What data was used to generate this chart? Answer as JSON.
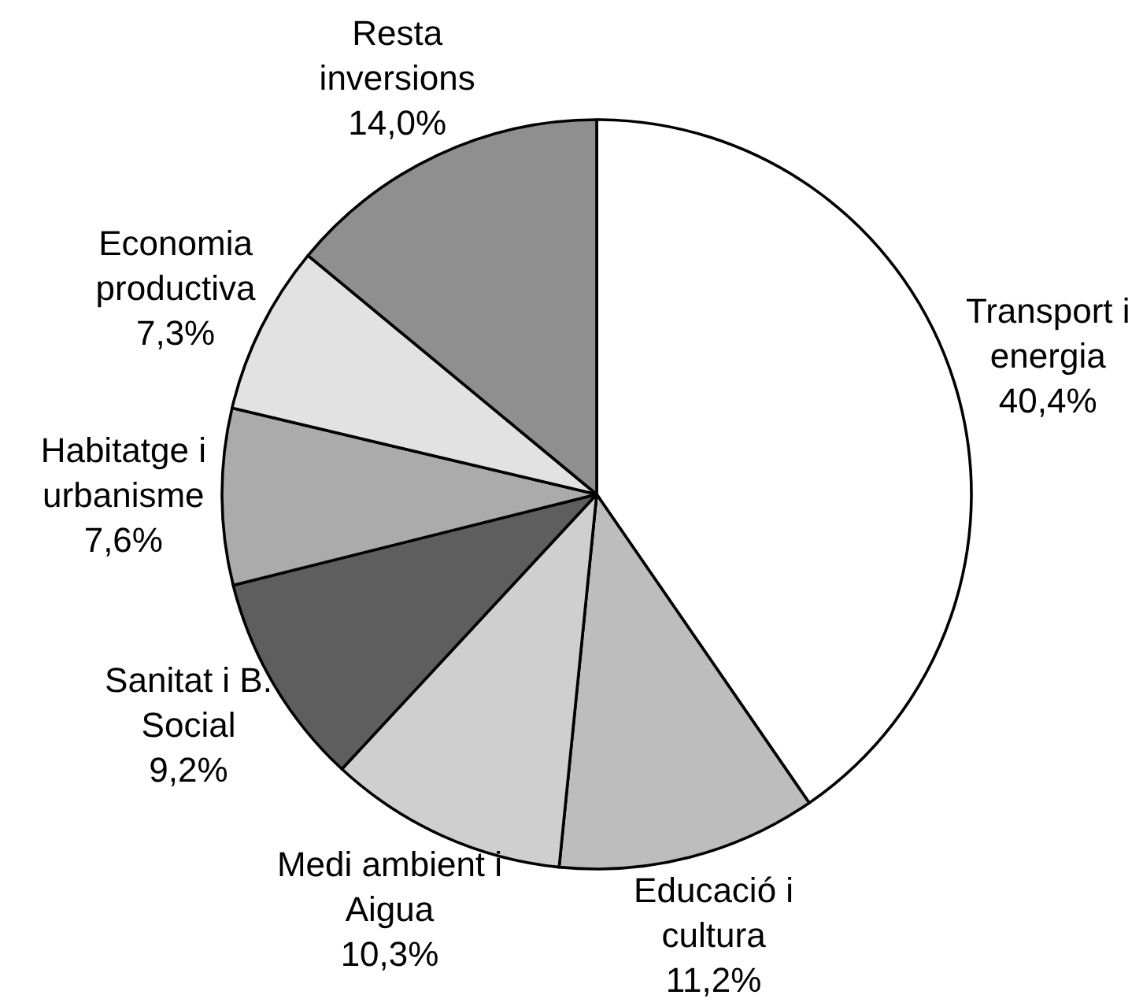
{
  "chart_data": {
    "type": "pie",
    "categories": [
      "Transport i energia",
      "Educació i cultura",
      "Medi ambient i Aigua",
      "Sanitat i B. Social",
      "Habitatge i urbanisme",
      "Economia productiva",
      "Resta inversions"
    ],
    "values": [
      40.4,
      11.2,
      10.3,
      9.2,
      7.6,
      7.3,
      14.0
    ],
    "value_labels": [
      "40,4%",
      "11,2%",
      "10,3%",
      "9,2%",
      "7,6%",
      "7,3%",
      "14,0%"
    ],
    "colors": [
      "#ffffff",
      "#bdbdbd",
      "#cfcfcf",
      "#5e5e5e",
      "#ababab",
      "#e2e2e2",
      "#8f8f8f"
    ],
    "legend": false
  }
}
